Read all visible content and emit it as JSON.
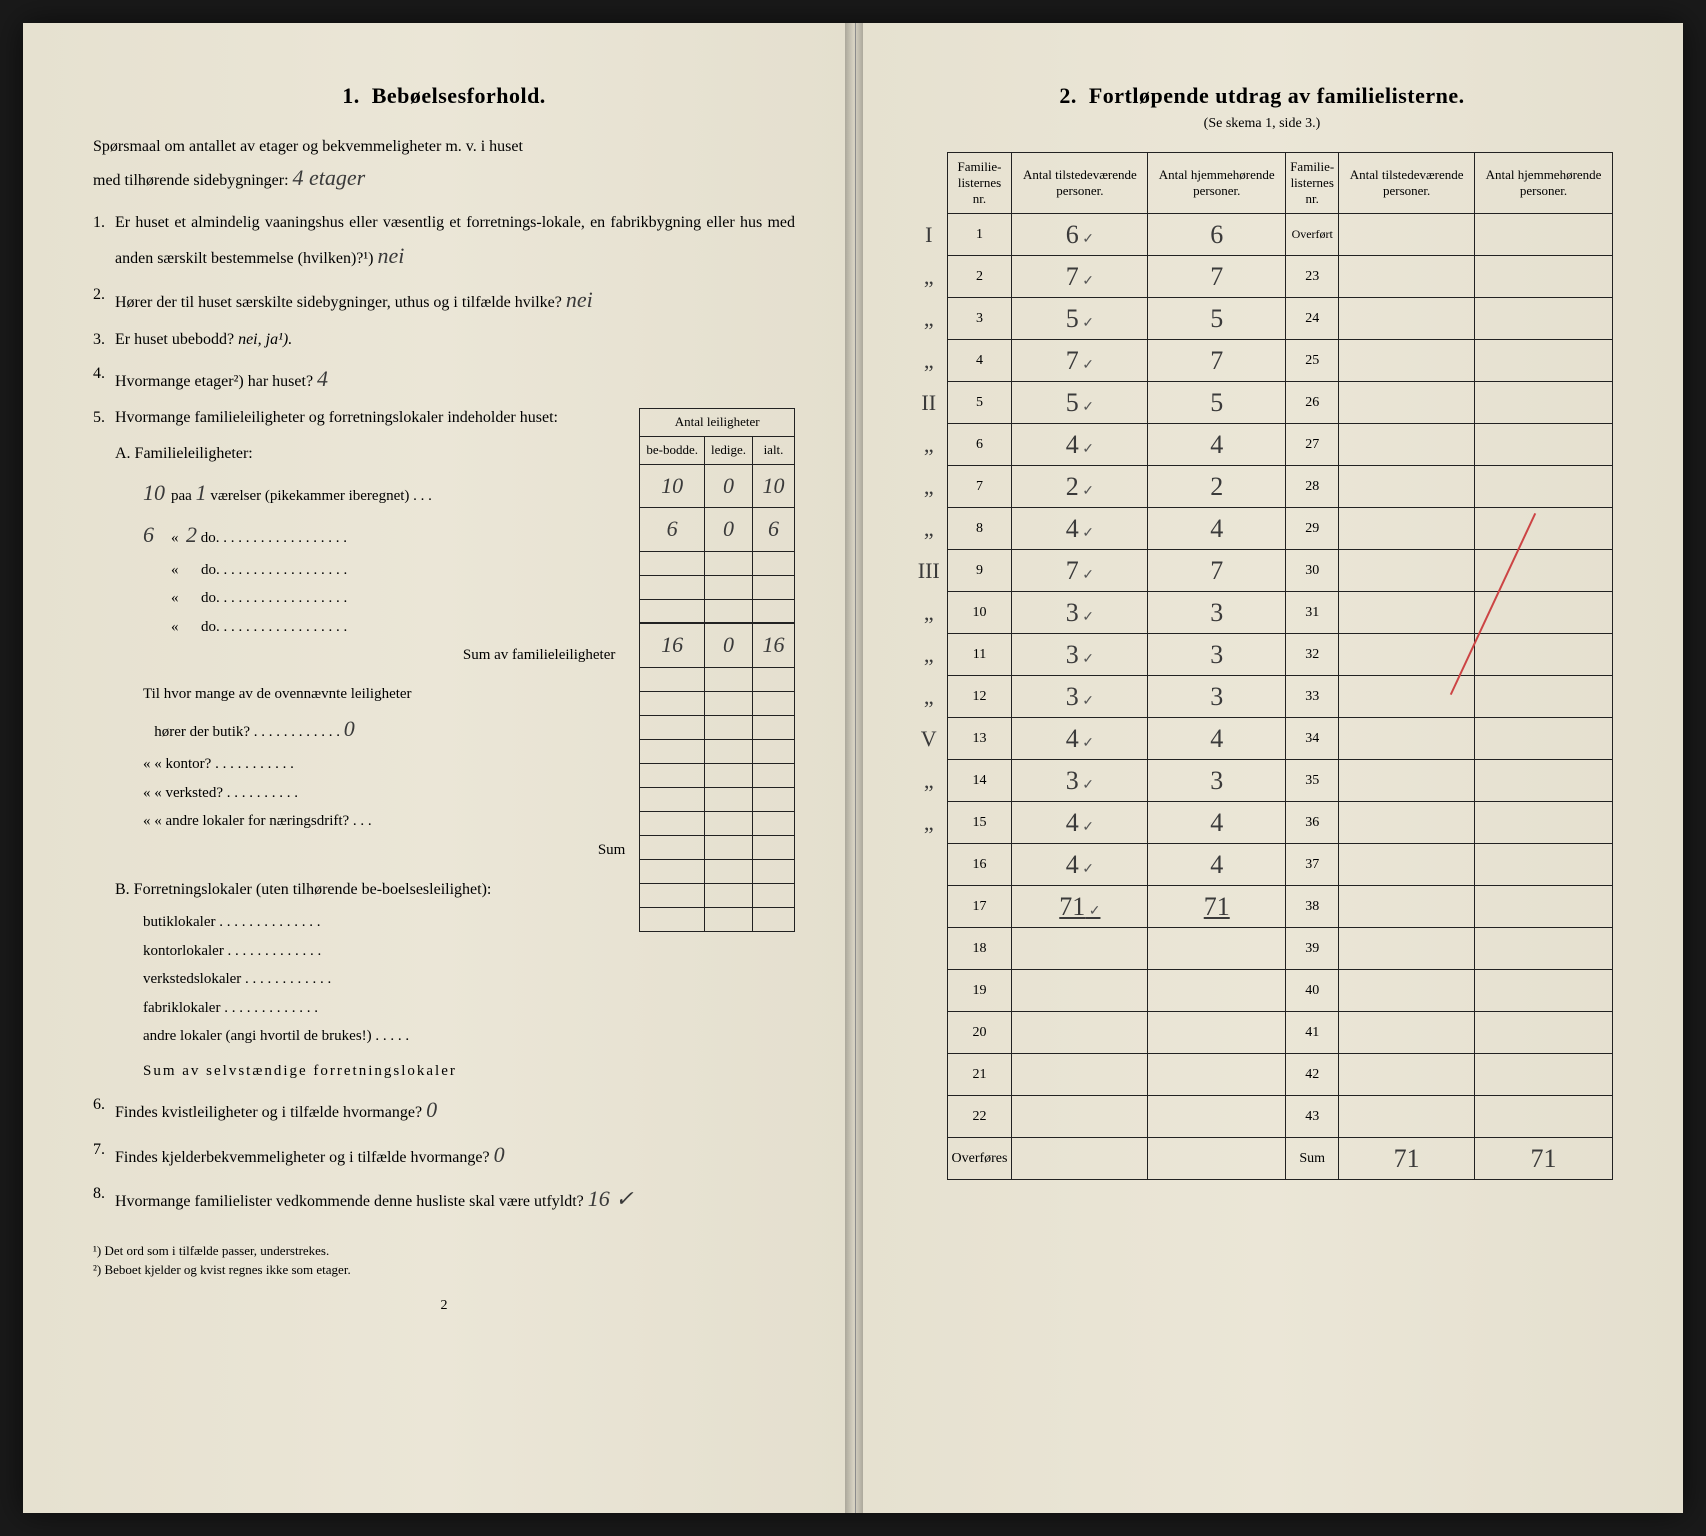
{
  "left": {
    "section_num": "1.",
    "section_title": "Bebøelsesforhold.",
    "intro_line1": "Spørsmaal om antallet av etager og bekvemmeligheter m. v. i huset",
    "intro_line2": "med tilhørende sidebygninger:",
    "intro_hand": "4 etager",
    "q1": "Er huset et almindelig vaaningshus eller væsentlig et forretnings-lokale, en fabrikbygning eller hus med anden særskilt bestemmelse (hvilken)?¹)",
    "q1_hand": "nei",
    "q2": "Hører der til huset særskilte sidebygninger, uthus og i tilfælde hvilke?",
    "q2_hand": "nei",
    "q3_pre": "Er huset ubebodd?",
    "q3_options": "nei,  ja¹).",
    "q4_pre": "Hvormange etager²) har huset?",
    "q4_hand": "4",
    "q5": "Hvormange familieleiligheter og forretningslokaler indeholder huset:",
    "small_table_header_top": "Antal leiligheter",
    "small_table_h1": "be-bodde.",
    "small_table_h2": "ledige.",
    "small_table_h3": "ialt.",
    "A_label": "A. Familieleiligheter:",
    "A_row1_hand_left": "10",
    "A_row1_text": "paa",
    "A_row1_mid": "1",
    "A_row1_rest": "værelser (pikekammer iberegnet) . . .",
    "A_row1_v1": "10",
    "A_row1_v2": "0",
    "A_row1_v3": "10",
    "A_row2_hand_left": "6",
    "A_row2_mid": "2",
    "A_row2_rest": "do.  . . . . . . . . . . . . . . . . .",
    "A_row2_v1": "6",
    "A_row2_v2": "0",
    "A_row2_v3": "6",
    "A_row_do": "do.  . . . . . . . . . . . . . . . . .",
    "A_sum_label": "Sum av familieleiligheter",
    "A_sum_v1": "16",
    "A_sum_v2": "0",
    "A_sum_v3": "16",
    "A_sub_intro": "Til hvor mange av de ovennævnte leiligheter",
    "A_sub1": "hører der butik? . . . . . . . . . . . .",
    "A_sub1_hand": "0",
    "A_sub2": "«     «   kontor? . . . . . . . . . . .",
    "A_sub3": "«     «   verksted? . . . . . . . . . .",
    "A_sub4": "«     «   andre lokaler for næringsdrift? . . .",
    "A_sub_sum": "Sum",
    "B_label": "B. Forretningslokaler (uten tilhørende be-boelsesleilighet):",
    "B_row1": "butiklokaler . . . . . . . . . . . . . .",
    "B_row2": "kontorlokaler . . . . . . . . . . . . .",
    "B_row3": "verkstedslokaler . . . . . . . . . . . .",
    "B_row4": "fabriklokaler . . . . . . . . . . . . .",
    "B_row5": "andre lokaler (angi hvortil de brukes!) . . . . .",
    "B_sum": "Sum av selvstændige forretningslokaler",
    "q6": "Findes kvistleiligheter og i tilfælde hvormange?",
    "q6_hand": "0",
    "q7": "Findes kjelderbekvemmeligheter og i tilfælde hvormange?",
    "q7_hand": "0",
    "q8": "Hvormange familielister vedkommende denne husliste skal være utfyldt?",
    "q8_hand": "16 ✓",
    "fn1": "¹) Det ord som i tilfælde passer, understrekes.",
    "fn2": "²) Beboet kjelder og kvist regnes ikke som etager.",
    "page_num": "2"
  },
  "right": {
    "section_num": "2.",
    "section_title": "Fortløpende utdrag av familielisterne.",
    "subtitle": "(Se skema 1, side 3.)",
    "headers": {
      "h1": "Familie-listernes nr.",
      "h2": "Antal tilstedeværende personer.",
      "h3": "Antal hjemmehørende personer.",
      "h4": "Familie-listernes nr.",
      "h5": "Antal tilstedeværende personer.",
      "h6": "Antal hjemmehørende personer."
    },
    "overfort": "Overført",
    "rows": [
      {
        "roman": "I",
        "nr": "1",
        "t": "6",
        "h": "6",
        "nr2": ""
      },
      {
        "roman": "„",
        "nr": "2",
        "t": "7",
        "h": "7",
        "nr2": "23"
      },
      {
        "roman": "„",
        "nr": "3",
        "t": "5",
        "h": "5",
        "nr2": "24"
      },
      {
        "roman": "„",
        "nr": "4",
        "t": "7",
        "h": "7",
        "nr2": "25"
      },
      {
        "roman": "II",
        "nr": "5",
        "t": "5",
        "h": "5",
        "nr2": "26"
      },
      {
        "roman": "„",
        "nr": "6",
        "t": "4",
        "h": "4",
        "nr2": "27"
      },
      {
        "roman": "„",
        "nr": "7",
        "t": "2",
        "h": "2",
        "nr2": "28"
      },
      {
        "roman": "„",
        "nr": "8",
        "t": "4",
        "h": "4",
        "nr2": "29"
      },
      {
        "roman": "III",
        "nr": "9",
        "t": "7",
        "h": "7",
        "nr2": "30"
      },
      {
        "roman": "„",
        "nr": "10",
        "t": "3",
        "h": "3",
        "nr2": "31"
      },
      {
        "roman": "„",
        "nr": "11",
        "t": "3",
        "h": "3",
        "nr2": "32"
      },
      {
        "roman": "„",
        "nr": "12",
        "t": "3",
        "h": "3",
        "nr2": "33"
      },
      {
        "roman": "V",
        "nr": "13",
        "t": "4",
        "h": "4",
        "nr2": "34"
      },
      {
        "roman": "„",
        "nr": "14",
        "t": "3",
        "h": "3",
        "nr2": "35"
      },
      {
        "roman": "„",
        "nr": "15",
        "t": "4",
        "h": "4",
        "nr2": "36"
      },
      {
        "roman": "",
        "nr": "16",
        "t": "4",
        "h": "4",
        "nr2": "37"
      },
      {
        "roman": "",
        "nr": "17",
        "t": "71",
        "h": "71",
        "nr2": "38"
      },
      {
        "roman": "",
        "nr": "18",
        "t": "",
        "h": "",
        "nr2": "39"
      },
      {
        "roman": "",
        "nr": "19",
        "t": "",
        "h": "",
        "nr2": "40"
      },
      {
        "roman": "",
        "nr": "20",
        "t": "",
        "h": "",
        "nr2": "41"
      },
      {
        "roman": "",
        "nr": "21",
        "t": "",
        "h": "",
        "nr2": "42"
      },
      {
        "roman": "",
        "nr": "22",
        "t": "",
        "h": "",
        "nr2": "43"
      }
    ],
    "overfores": "Overføres",
    "sum_label": "Sum",
    "sum_t": "71",
    "sum_h": "71"
  },
  "colors": {
    "paper": "#e8e3d4",
    "ink": "#1a1a1a",
    "handwriting": "#3a3a3a",
    "red": "#c44545"
  }
}
